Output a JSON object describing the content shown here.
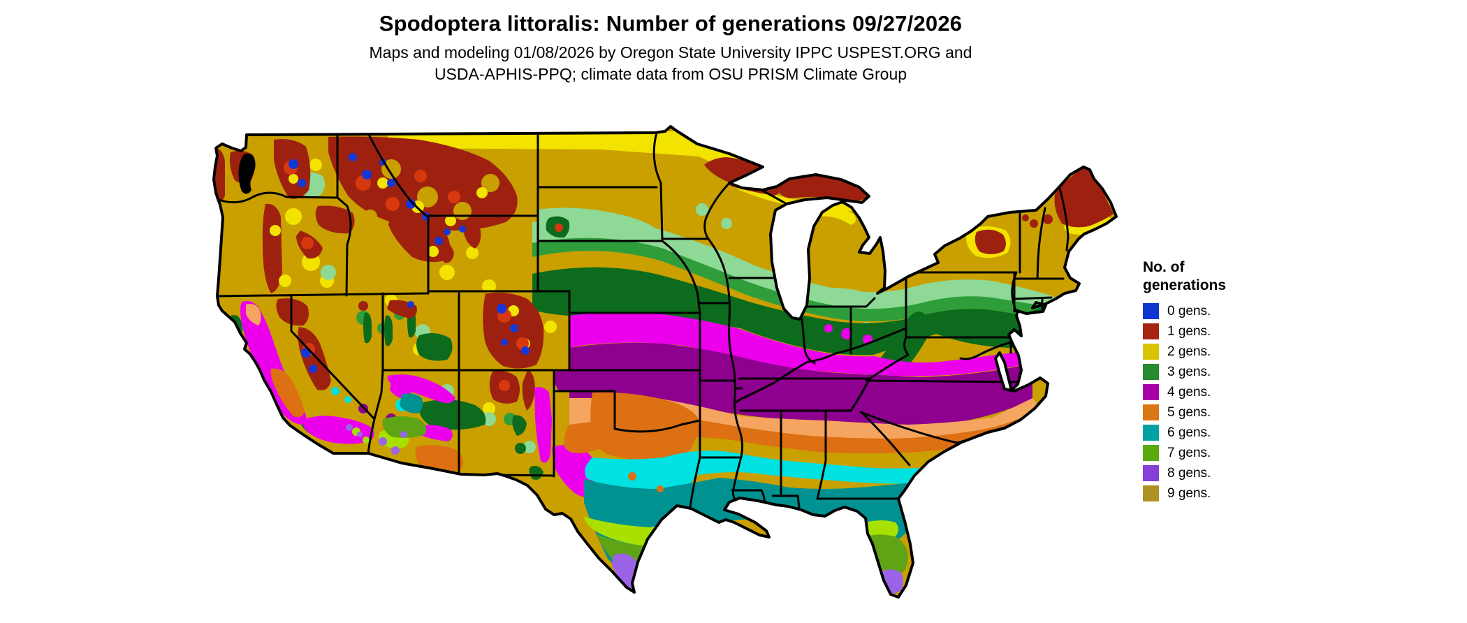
{
  "title": "Spodoptera littoralis: Number of generations 09/27/2026",
  "subtitle_line1": "Maps and modeling 01/08/2026 by Oregon State University IPPC USPEST.ORG and",
  "subtitle_line2": "USDA-APHIS-PPQ; climate data from OSU PRISM Climate Group",
  "legend": {
    "title_line1": "No. of",
    "title_line2": "generations",
    "items": [
      {
        "label": "0 gens.",
        "color": "#0d36d0"
      },
      {
        "label": "1 gens.",
        "color": "#a8230f"
      },
      {
        "label": "2 gens.",
        "color": "#d9c400"
      },
      {
        "label": "3 gens.",
        "color": "#268a2e"
      },
      {
        "label": "4 gens.",
        "color": "#a800a8"
      },
      {
        "label": "5 gens.",
        "color": "#d97714"
      },
      {
        "label": "6 gens.",
        "color": "#00a2a2"
      },
      {
        "label": "7 gens.",
        "color": "#5ca80f"
      },
      {
        "label": "8 gens.",
        "color": "#8540d6"
      },
      {
        "label": "9 gens.",
        "color": "#ad9222"
      }
    ]
  },
  "map": {
    "region": "Continental United States",
    "value_shown": "Predicted number of pest generations",
    "colors": {
      "water": "#ffffff",
      "border": "#000000",
      "base_gold": "#c9a000",
      "yellow": "#f2e400",
      "green_light": "#8fd996",
      "green_mid": "#2f9e3a",
      "green_dark": "#0c6b1c",
      "red_dark": "#9e2110",
      "red_bright": "#d8380e",
      "blue": "#1438d8",
      "magenta_bright": "#ec00ec",
      "magenta_dark": "#8e008e",
      "orange_light": "#f5a55f",
      "orange_dark": "#dc7012",
      "cyan_bright": "#00e2e2",
      "teal_dark": "#009290",
      "chartreuse": "#a8e000",
      "green_seven": "#5fa414",
      "purple": "#9b63e8",
      "olive": "#b09b21"
    }
  }
}
